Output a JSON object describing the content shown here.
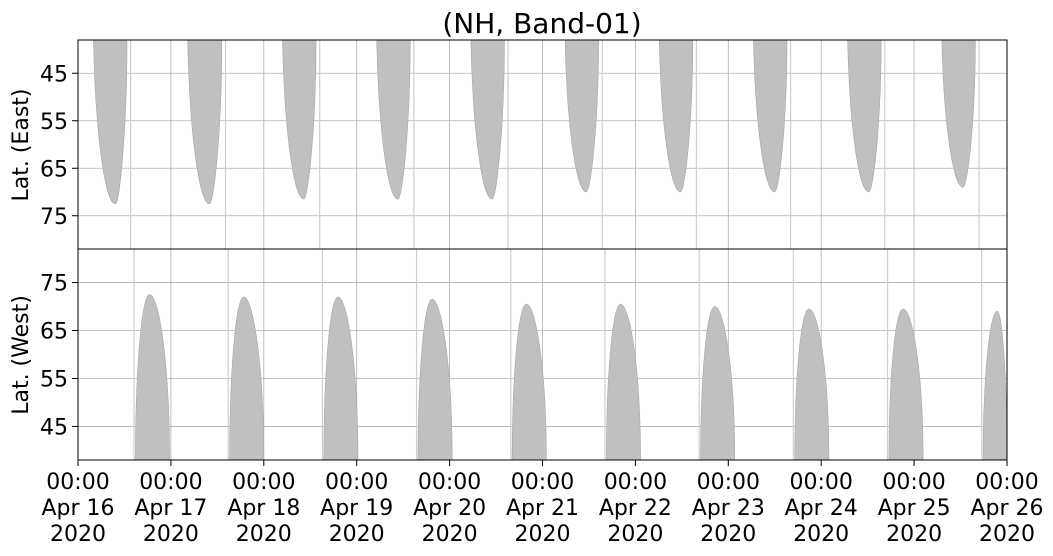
{
  "chart_data": {
    "type": "area",
    "title": "(NH, Band-01)",
    "grid": true,
    "x_range": [
      "2020-04-16T00:00",
      "2020-04-26T00:00"
    ],
    "x_ticks": [
      {
        "time": "00:00",
        "date": "Apr 16",
        "year": "2020"
      },
      {
        "time": "00:00",
        "date": "Apr 17",
        "year": "2020"
      },
      {
        "time": "00:00",
        "date": "Apr 18",
        "year": "2020"
      },
      {
        "time": "00:00",
        "date": "Apr 19",
        "year": "2020"
      },
      {
        "time": "00:00",
        "date": "Apr 20",
        "year": "2020"
      },
      {
        "time": "00:00",
        "date": "Apr 21",
        "year": "2020"
      },
      {
        "time": "00:00",
        "date": "Apr 22",
        "year": "2020"
      },
      {
        "time": "00:00",
        "date": "Apr 23",
        "year": "2020"
      },
      {
        "time": "00:00",
        "date": "Apr 24",
        "year": "2020"
      },
      {
        "time": "00:00",
        "date": "Apr 25",
        "year": "2020"
      },
      {
        "time": "00:00",
        "date": "Apr 26",
        "year": "2020"
      }
    ],
    "panels": [
      {
        "name": "east",
        "ylabel": "Lat. (East)",
        "ylim": [
          38,
          82
        ],
        "y_inverted": true,
        "y_ticks": [
          45,
          55,
          65,
          75
        ],
        "color": "#c0c0c0",
        "coverage": [
          {
            "start": "2020-04-16T04:00",
            "peak_time": "2020-04-16T09:40",
            "peak_lat": 72.5,
            "end": "2020-04-16T12:40"
          },
          {
            "start": "2020-04-17T04:20",
            "peak_time": "2020-04-17T10:00",
            "peak_lat": 72.5,
            "end": "2020-04-17T13:10"
          },
          {
            "start": "2020-04-18T04:50",
            "peak_time": "2020-04-18T10:20",
            "peak_lat": 71.5,
            "end": "2020-04-18T13:30"
          },
          {
            "start": "2020-04-19T05:10",
            "peak_time": "2020-04-19T10:40",
            "peak_lat": 71.5,
            "end": "2020-04-19T13:50"
          },
          {
            "start": "2020-04-20T05:30",
            "peak_time": "2020-04-20T11:00",
            "peak_lat": 71.5,
            "end": "2020-04-20T14:10"
          },
          {
            "start": "2020-04-21T05:50",
            "peak_time": "2020-04-21T11:20",
            "peak_lat": 70.0,
            "end": "2020-04-21T14:30"
          },
          {
            "start": "2020-04-22T06:10",
            "peak_time": "2020-04-22T11:40",
            "peak_lat": 70.0,
            "end": "2020-04-22T14:50"
          },
          {
            "start": "2020-04-23T06:30",
            "peak_time": "2020-04-23T12:00",
            "peak_lat": 70.0,
            "end": "2020-04-23T15:10"
          },
          {
            "start": "2020-04-24T06:50",
            "peak_time": "2020-04-24T12:20",
            "peak_lat": 70.0,
            "end": "2020-04-24T15:30"
          },
          {
            "start": "2020-04-25T07:10",
            "peak_time": "2020-04-25T12:40",
            "peak_lat": 69.0,
            "end": "2020-04-25T15:50"
          }
        ]
      },
      {
        "name": "west",
        "ylabel": "Lat. (West)",
        "ylim": [
          38,
          82
        ],
        "y_inverted": false,
        "y_ticks": [
          45,
          55,
          65,
          75
        ],
        "color": "#c0c0c0",
        "coverage": [
          {
            "start": "2020-04-16T14:50",
            "peak_time": "2020-04-16T18:30",
            "peak_lat": 72.5,
            "end": "2020-04-16T23:40"
          },
          {
            "start": "2020-04-17T15:10",
            "peak_time": "2020-04-17T18:50",
            "peak_lat": 72.0,
            "end": "2020-04-18T00:00"
          },
          {
            "start": "2020-04-18T15:30",
            "peak_time": "2020-04-18T19:10",
            "peak_lat": 72.0,
            "end": "2020-04-19T00:20"
          },
          {
            "start": "2020-04-19T15:50",
            "peak_time": "2020-04-19T19:30",
            "peak_lat": 71.5,
            "end": "2020-04-20T00:40"
          },
          {
            "start": "2020-04-20T16:10",
            "peak_time": "2020-04-20T19:50",
            "peak_lat": 70.5,
            "end": "2020-04-21T01:00"
          },
          {
            "start": "2020-04-21T16:30",
            "peak_time": "2020-04-21T20:10",
            "peak_lat": 70.5,
            "end": "2020-04-22T01:20"
          },
          {
            "start": "2020-04-22T16:50",
            "peak_time": "2020-04-22T20:30",
            "peak_lat": 70.0,
            "end": "2020-04-23T01:40"
          },
          {
            "start": "2020-04-23T17:10",
            "peak_time": "2020-04-23T20:50",
            "peak_lat": 69.5,
            "end": "2020-04-24T02:00"
          },
          {
            "start": "2020-04-24T17:30",
            "peak_time": "2020-04-24T21:10",
            "peak_lat": 69.5,
            "end": "2020-04-25T02:20"
          },
          {
            "start": "2020-04-25T17:50",
            "peak_time": "2020-04-25T21:30",
            "peak_lat": 69.0,
            "end": "2020-04-26T00:00"
          }
        ]
      }
    ]
  }
}
